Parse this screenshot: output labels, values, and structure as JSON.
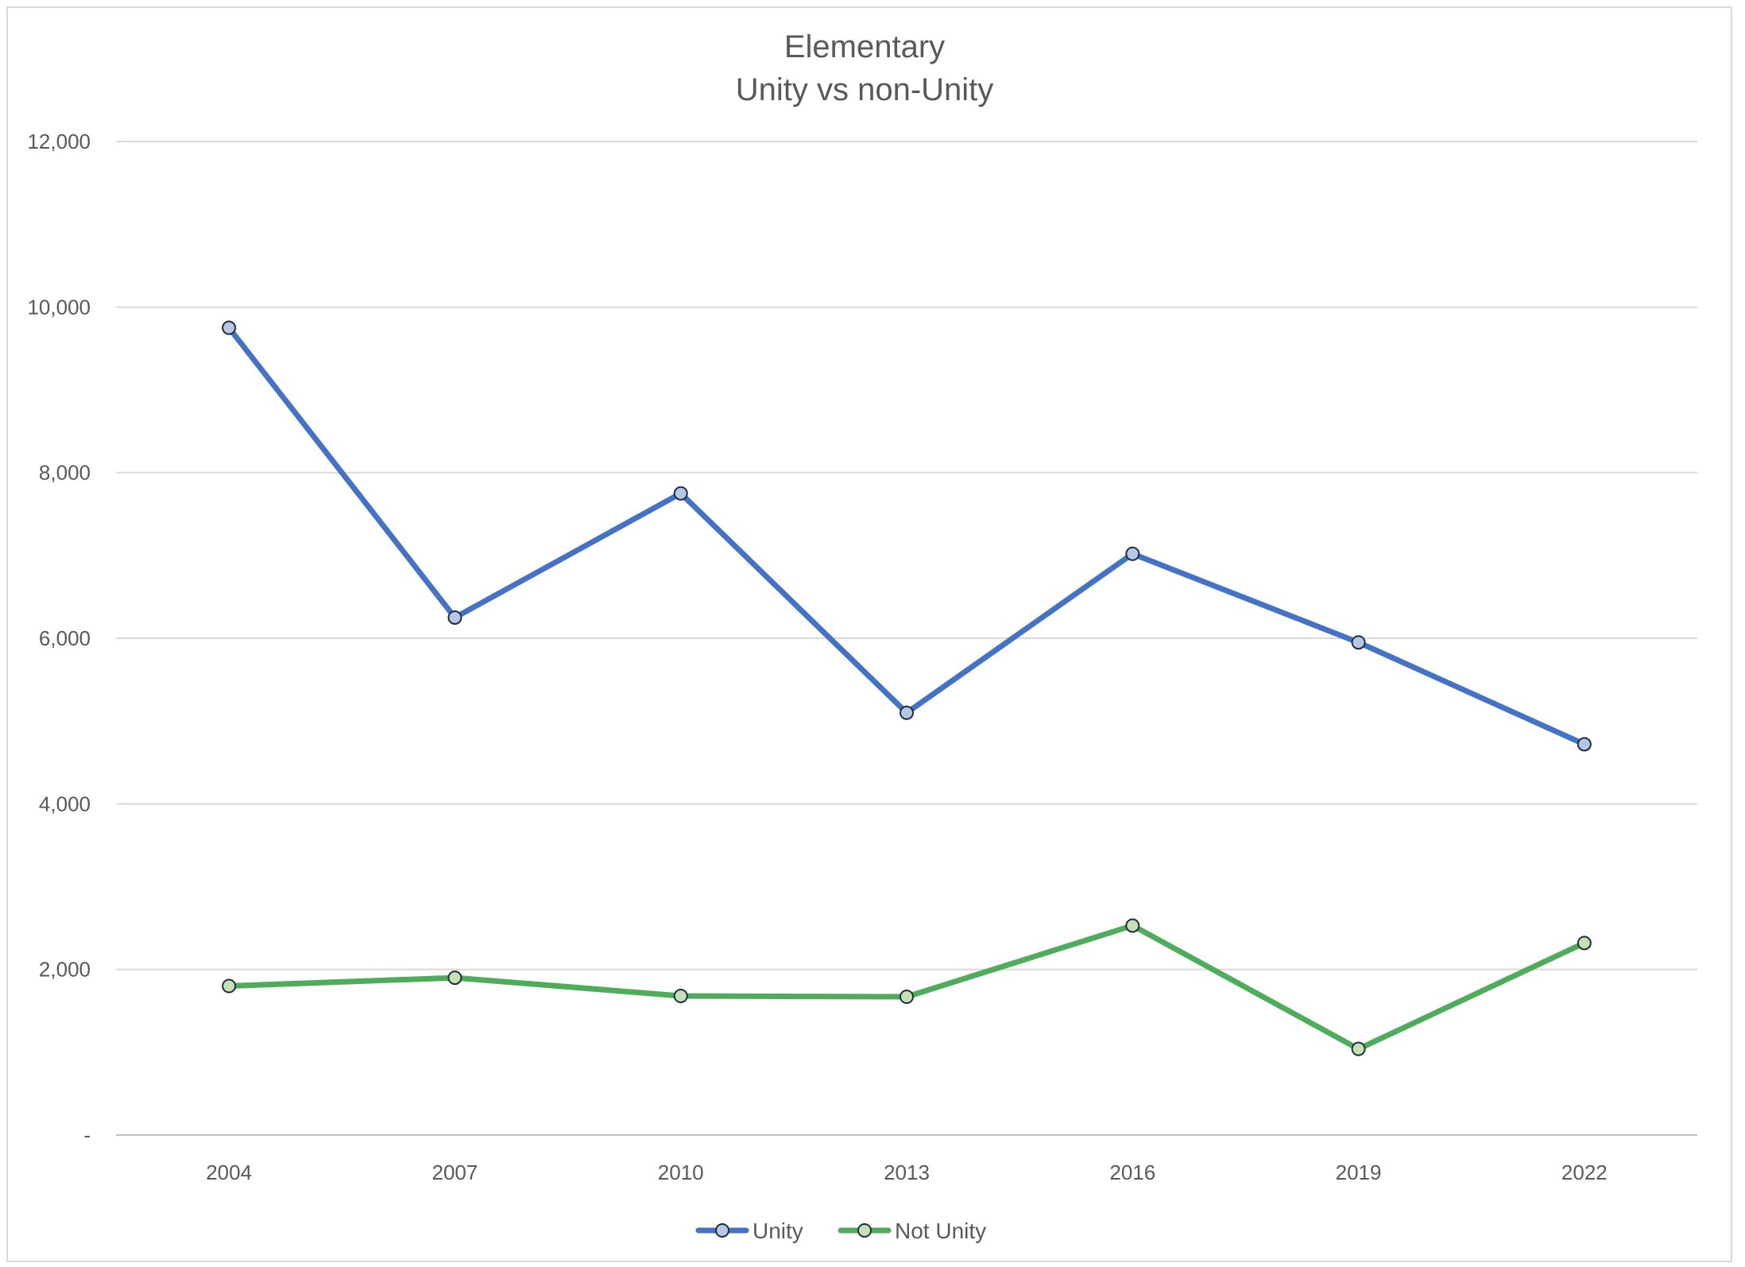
{
  "chart_data": {
    "type": "line",
    "title": "Elementary",
    "subtitle": "Unity vs non-Unity",
    "xlabel": "",
    "ylabel": "",
    "categories": [
      "2004",
      "2007",
      "2010",
      "2013",
      "2016",
      "2019",
      "2022"
    ],
    "ylim": [
      0,
      12000
    ],
    "yticks": [
      0,
      2000,
      4000,
      6000,
      8000,
      10000,
      12000
    ],
    "ytick_labels": [
      "-",
      "2,000",
      "4,000",
      "6,000",
      "8,000",
      "10,000",
      "12,000"
    ],
    "grid": true,
    "legend": "bottom",
    "series": [
      {
        "name": "Unity",
        "color": "#4472c4",
        "marker_fill": "#b4c7e7",
        "values": [
          9750,
          6250,
          7750,
          5100,
          7020,
          5950,
          4720
        ]
      },
      {
        "name": "Not Unity",
        "color": "#4eac5b",
        "marker_fill": "#c5e0b4",
        "values": [
          1800,
          1900,
          1680,
          1670,
          2530,
          1040,
          2320
        ]
      }
    ]
  }
}
